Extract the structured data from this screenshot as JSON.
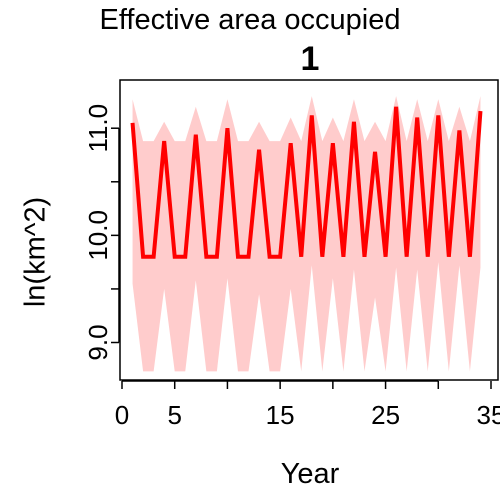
{
  "chart_data": {
    "type": "line",
    "title": "Effective area occupied",
    "subtitle": "1",
    "xlabel": "Year",
    "ylabel": "ln(km^2)",
    "xlim": [
      0,
      35
    ],
    "ylim": [
      8.65,
      11.45
    ],
    "x_ticks": [
      0,
      5,
      15,
      25,
      35
    ],
    "x_minor_ticks": [
      10,
      20,
      30
    ],
    "x_tick_labels": [
      "0",
      "5",
      "15",
      "25",
      "35"
    ],
    "y_ticks": [
      9.0,
      10.0,
      11.0
    ],
    "y_tick_labels": [
      "9.0",
      "10.0",
      "11.0"
    ],
    "y_minor_ticks": [
      9.5,
      10.5
    ],
    "grid": false,
    "line_color": "#ff0000",
    "band_color": "#ffcccc",
    "series": [
      {
        "x": [
          1,
          2,
          3,
          4,
          5,
          6,
          7,
          8,
          9,
          10,
          11,
          12,
          13,
          14,
          15,
          16,
          17,
          18,
          19,
          20,
          21,
          22,
          23,
          24,
          25,
          26,
          27,
          28,
          29,
          30,
          31,
          32,
          33,
          34
        ],
        "values": [
          11.05,
          9.8,
          9.8,
          10.88,
          9.8,
          9.8,
          10.94,
          9.8,
          9.8,
          11.0,
          9.8,
          9.8,
          10.8,
          9.8,
          9.8,
          10.86,
          9.8,
          11.12,
          9.8,
          10.86,
          9.8,
          11.06,
          9.8,
          10.78,
          9.8,
          11.2,
          9.8,
          11.1,
          9.8,
          11.12,
          9.8,
          10.98,
          9.8,
          11.16
        ],
        "upper": [
          11.27,
          10.88,
          10.88,
          11.06,
          10.88,
          10.88,
          11.2,
          10.88,
          10.88,
          11.27,
          10.88,
          10.88,
          11.06,
          10.88,
          10.88,
          11.1,
          10.88,
          11.3,
          10.88,
          11.1,
          10.88,
          11.27,
          10.88,
          11.06,
          10.88,
          11.3,
          10.88,
          11.27,
          10.88,
          11.27,
          10.88,
          11.2,
          10.88,
          11.3
        ],
        "lower": [
          9.55,
          8.73,
          8.73,
          9.5,
          8.73,
          8.73,
          9.58,
          8.73,
          8.73,
          9.6,
          8.73,
          8.73,
          9.45,
          8.73,
          8.73,
          9.5,
          8.73,
          9.72,
          8.73,
          9.6,
          8.73,
          9.68,
          8.73,
          9.42,
          8.73,
          9.7,
          8.73,
          9.68,
          8.73,
          9.75,
          8.73,
          9.72,
          8.73,
          9.7
        ]
      }
    ]
  }
}
